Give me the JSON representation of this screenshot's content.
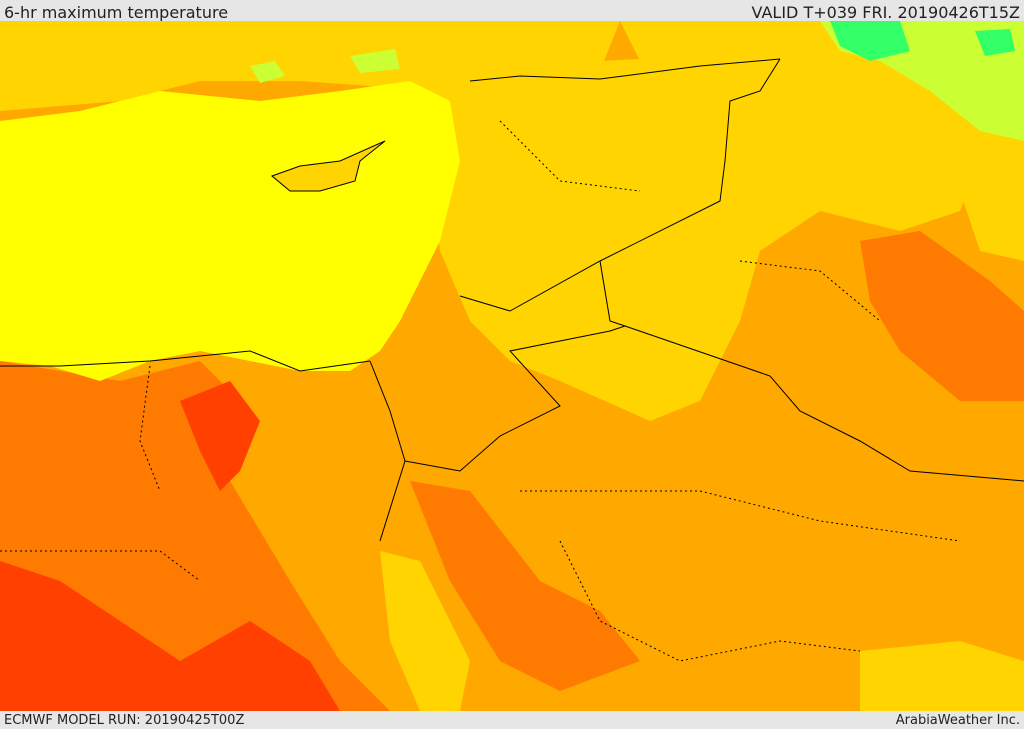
{
  "header": {
    "title": "6-hr maximum temperature",
    "valid": "VALID T+039 FRI. 20190426T15Z"
  },
  "footer": {
    "model_run": "ECMWF MODEL RUN: 20190425T00Z",
    "credit": "ArabiaWeather Inc."
  },
  "colors": {
    "sea": "#ffff00",
    "warm": "#ffd400",
    "hot": "#ffa800",
    "very_hot": "#ff7a00",
    "extreme": "#ff4000",
    "cool": "#ccff33",
    "cold": "#33ff66",
    "border": "#000000"
  }
}
